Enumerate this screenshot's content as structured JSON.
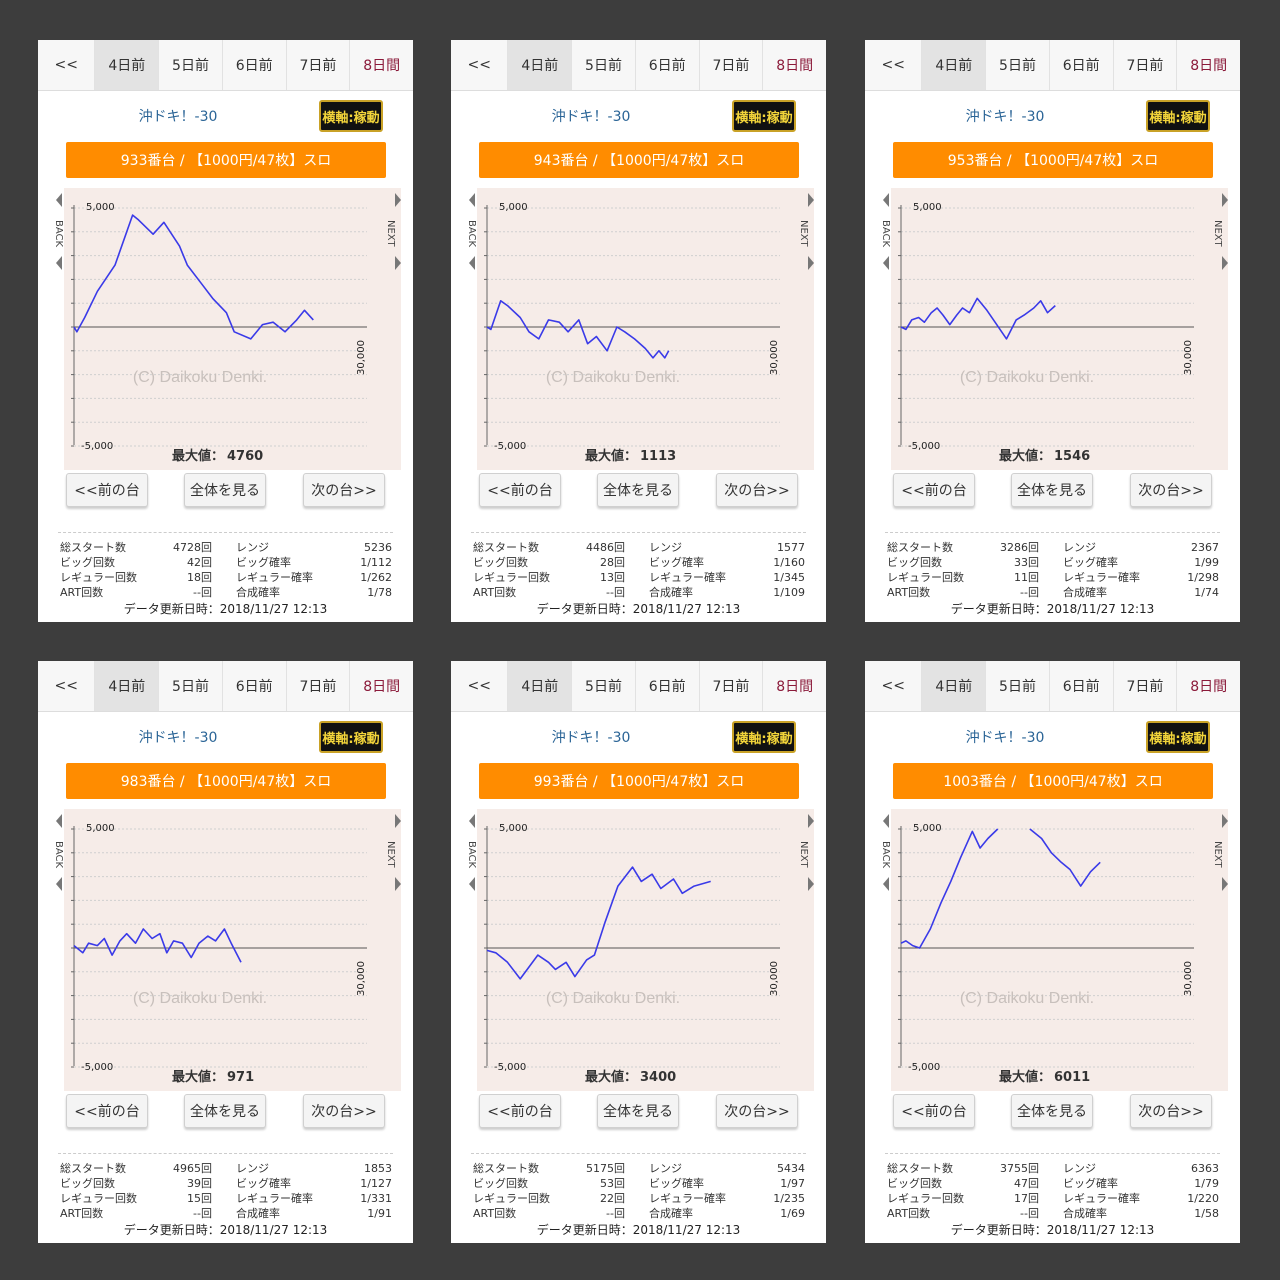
{
  "tabs": [
    "<<",
    "4日前",
    "5日前",
    "6日前",
    "7日前",
    "8日間"
  ],
  "model": "沖ドキ！-30",
  "axis_button": "横軸:稼動",
  "buttons": {
    "prev": "<<前の台",
    "all": "全体を見る",
    "next": "次の台>>"
  },
  "stat_labels": {
    "total": "総スタート数",
    "big": "ビッグ回数",
    "reg": "レギュラー回数",
    "art": "ART回数",
    "range": "レンジ",
    "big_prob": "ビッグ確率",
    "reg_prob": "レギュラー確率",
    "combined": "合成確率"
  },
  "update": "データ更新日時：2018/11/27 12:13",
  "chart_text": {
    "back": "BACK",
    "next": "NEXT",
    "y_top": "5,000",
    "y_bottom": "-5,000",
    "x_right": "30,000",
    "watermark": "(C) Daikoku Denki.",
    "max_label": "最大値："
  },
  "colors": {
    "orange": "#ff8c00",
    "line": "#3a3ae8",
    "chart_bg": "#f6ece8",
    "tab_accent": "#8b1a3a"
  },
  "machines": [
    {
      "title": "933番台 / 【1000円/47枚】スロ",
      "max": "4760",
      "total": "4728回",
      "big": "42回",
      "reg": "18回",
      "art": "--回",
      "range": "5236",
      "big_prob": "1/112",
      "reg_prob": "1/262",
      "combined": "1/78"
    },
    {
      "title": "943番台 / 【1000円/47枚】スロ",
      "max": "1113",
      "total": "4486回",
      "big": "28回",
      "reg": "13回",
      "art": "--回",
      "range": "1577",
      "big_prob": "1/160",
      "reg_prob": "1/345",
      "combined": "1/109"
    },
    {
      "title": "953番台 / 【1000円/47枚】スロ",
      "max": "1546",
      "total": "3286回",
      "big": "33回",
      "reg": "11回",
      "art": "--回",
      "range": "2367",
      "big_prob": "1/99",
      "reg_prob": "1/298",
      "combined": "1/74"
    },
    {
      "title": "983番台 / 【1000円/47枚】スロ",
      "max": "971",
      "total": "4965回",
      "big": "39回",
      "reg": "15回",
      "art": "--回",
      "range": "1853",
      "big_prob": "1/127",
      "reg_prob": "1/331",
      "combined": "1/91"
    },
    {
      "title": "993番台 / 【1000円/47枚】スロ",
      "max": "3400",
      "total": "5175回",
      "big": "53回",
      "reg": "22回",
      "art": "--回",
      "range": "5434",
      "big_prob": "1/97",
      "reg_prob": "1/235",
      "combined": "1/69"
    },
    {
      "title": "1003番台 / 【1000円/47枚】スロ",
      "max": "6011",
      "total": "3755回",
      "big": "47回",
      "reg": "17回",
      "art": "--回",
      "range": "6363",
      "big_prob": "1/79",
      "reg_prob": "1/220",
      "combined": "1/58"
    }
  ],
  "chart_data": [
    {
      "type": "line",
      "xlim": [
        0,
        30000
      ],
      "ylim": [
        -5000,
        5000
      ],
      "yticks": [
        "5,000",
        "-5,000"
      ],
      "xtick": "30,000",
      "x": [
        0,
        300,
        1100,
        2400,
        4200,
        6000,
        6600,
        8100,
        9200,
        10800,
        11600,
        13100,
        14200,
        15600,
        16400,
        18100,
        19300,
        20400,
        21600,
        22800,
        23600,
        24500
      ],
      "values": [
        0,
        -200,
        400,
        1500,
        2600,
        4700,
        4500,
        3900,
        4400,
        3400,
        2600,
        1800,
        1200,
        600,
        -200,
        -500,
        100,
        200,
        -200,
        300,
        700,
        300
      ]
    },
    {
      "type": "line",
      "xlim": [
        0,
        30000
      ],
      "ylim": [
        -5000,
        5000
      ],
      "yticks": [
        "5,000",
        "-5,000"
      ],
      "xtick": "30,000",
      "x": [
        0,
        400,
        1400,
        2100,
        3400,
        4300,
        5300,
        6300,
        7400,
        8300,
        9400,
        10300,
        11200,
        12300,
        13300,
        14100,
        15100,
        16200,
        17000,
        17600,
        18200,
        18600
      ],
      "values": [
        0,
        -100,
        1100,
        900,
        400,
        -200,
        -500,
        300,
        200,
        -200,
        300,
        -700,
        -400,
        -1000,
        0,
        -200,
        -500,
        -900,
        -1300,
        -1000,
        -1300,
        -1000
      ]
    },
    {
      "type": "line",
      "xlim": [
        0,
        30000
      ],
      "ylim": [
        -5000,
        5000
      ],
      "yticks": [
        "5,000",
        "-5,000"
      ],
      "xtick": "30,000",
      "x": [
        0,
        500,
        1100,
        1800,
        2400,
        3100,
        3700,
        4300,
        5000,
        5700,
        6300,
        7000,
        7800,
        8800,
        9800,
        10800,
        11800,
        12600,
        13600,
        14300,
        15000,
        15800
      ],
      "values": [
        0,
        -100,
        300,
        400,
        200,
        600,
        800,
        500,
        100,
        500,
        800,
        600,
        1200,
        700,
        100,
        -500,
        300,
        500,
        800,
        1100,
        600,
        900
      ]
    },
    {
      "type": "line",
      "xlim": [
        0,
        30000
      ],
      "ylim": [
        -5000,
        5000
      ],
      "yticks": [
        "5,000",
        "-5,000"
      ],
      "xtick": "30,000",
      "x": [
        0,
        900,
        1500,
        2400,
        3100,
        3900,
        4700,
        5400,
        6300,
        7100,
        8000,
        8800,
        9500,
        10200,
        11100,
        12000,
        12800,
        13700,
        14500,
        15400,
        16100,
        17100
      ],
      "values": [
        100,
        -200,
        200,
        100,
        400,
        -300,
        300,
        600,
        200,
        800,
        400,
        600,
        -200,
        300,
        200,
        -400,
        200,
        500,
        300,
        800,
        200,
        -600
      ]
    },
    {
      "type": "line",
      "xlim": [
        0,
        30000
      ],
      "ylim": [
        -5000,
        5000
      ],
      "yticks": [
        "5,000",
        "-5,000"
      ],
      "xtick": "30,000",
      "x": [
        0,
        900,
        2100,
        3400,
        4300,
        5200,
        6300,
        7000,
        8100,
        9000,
        10200,
        11000,
        12100,
        13400,
        14900,
        15800,
        16900,
        17800,
        19100,
        20000,
        21200,
        22900
      ],
      "values": [
        -100,
        -200,
        -600,
        -1300,
        -800,
        -300,
        -600,
        -900,
        -600,
        -1200,
        -500,
        -300,
        1100,
        2600,
        3400,
        2800,
        3100,
        2500,
        2900,
        2300,
        2600,
        2800
      ]
    },
    {
      "type": "line",
      "xlim": [
        0,
        30000
      ],
      "ylim": [
        -5000,
        5000
      ],
      "yticks": [
        "5,000",
        "-5,000"
      ],
      "xtick": "30,000",
      "x": [
        0,
        500,
        1200,
        1900,
        3000,
        4100,
        5100,
        6100,
        7300,
        8100,
        8900,
        9900,
        10500,
        11300,
        13200,
        14400,
        15400,
        16400,
        17300,
        18400,
        19400,
        20400
      ],
      "values": [
        200,
        300,
        100,
        0,
        800,
        1900,
        2800,
        3800,
        4900,
        4200,
        4600,
        5000,
        null,
        null,
        5000,
        4600,
        4000,
        3600,
        3300,
        2600,
        3200,
        3600
      ]
    }
  ]
}
